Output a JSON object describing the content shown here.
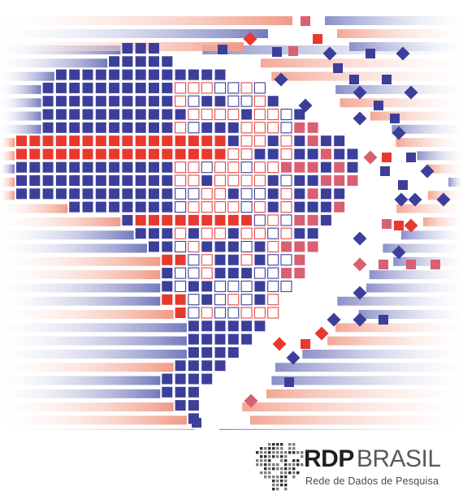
{
  "logo": {
    "brand_part1": "RDP",
    "brand_part2": "BRASIL",
    "tagline": "Rede de Dados de Pesquisa"
  },
  "colors": {
    "blue": "#3c3f9a",
    "red": "#e8392f",
    "pink": "#d95f73",
    "stripe_blue": "#6d73b8",
    "stripe_red": "#ee8c7e",
    "outline": "#e34a48",
    "logo_gray": "#3a3a3a"
  }
}
